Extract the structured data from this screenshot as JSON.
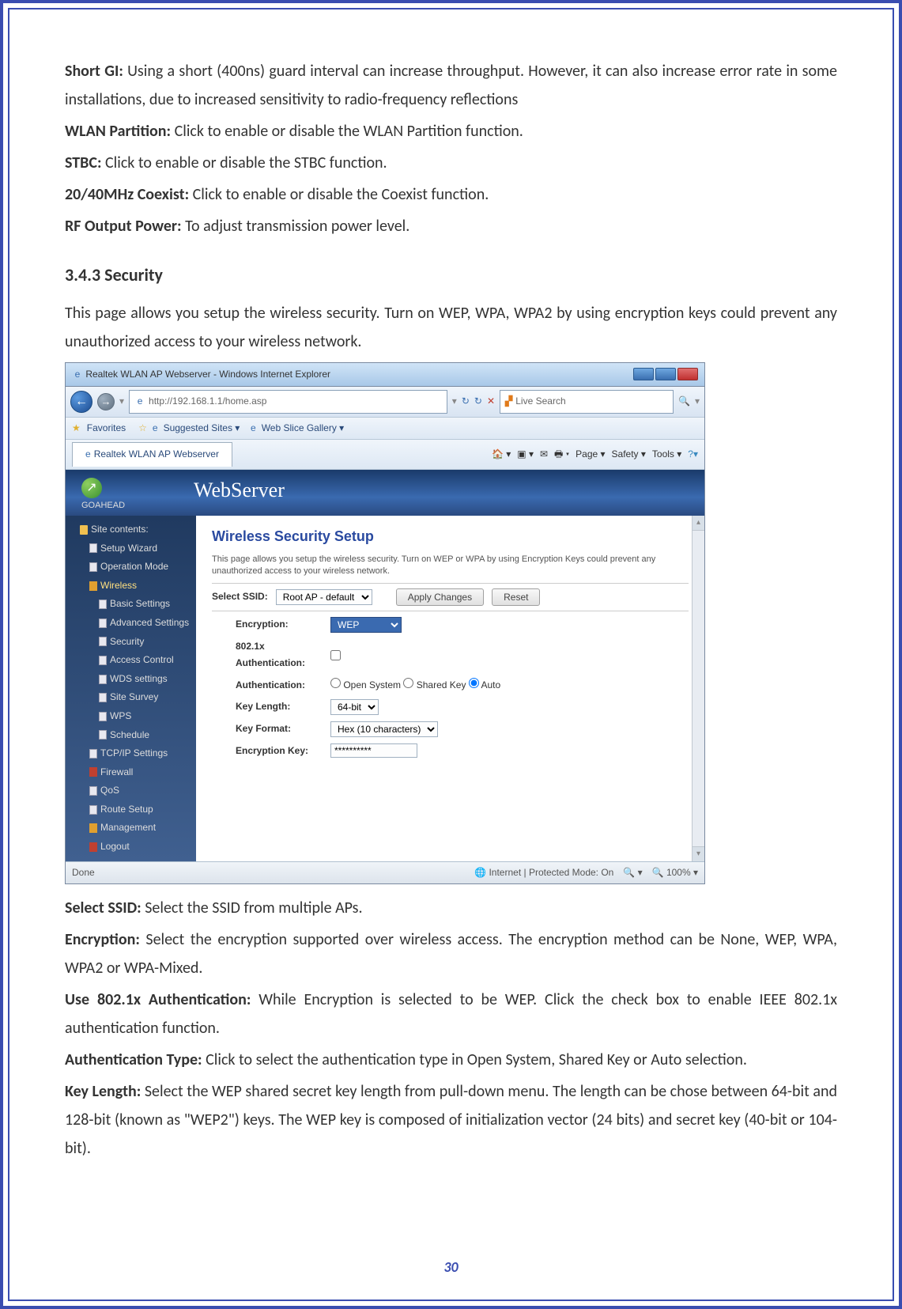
{
  "doc": {
    "para_short_gi_label": "Short GI:",
    "para_short_gi": " Using a short (400ns) guard interval can increase throughput. However, it can also increase error rate in some installations, due to increased sensitivity to radio-frequency reflections",
    "para_wlan_label": "WLAN Partition:",
    "para_wlan": " Click to enable or disable the WLAN Partition function.",
    "para_stbc_label": "STBC:",
    "para_stbc": " Click to enable or disable the STBC function.",
    "para_coexist_label": "20/40MHz Coexist:",
    "para_coexist": " Click to enable or disable the Coexist function.",
    "para_rf_label": "RF Output Power:",
    "para_rf": " To adjust transmission power level.",
    "heading_343": "3.4.3    Security",
    "para_343": "This page allows you setup the wireless security. Turn on WEP, WPA, WPA2 by using encryption keys could prevent any unauthorized access to your wireless network.",
    "para_ssid_label": "Select SSID:",
    "para_ssid": " Select the SSID from multiple APs.",
    "para_enc_label": "Encryption:",
    "para_enc": " Select the encryption supported over wireless access. The encryption method can be None, WEP, WPA, WPA2 or WPA-Mixed.",
    "para_8021x_label": "Use 802.1x Authentication:",
    "para_8021x": " While Encryption is selected to be WEP. Click the check box to enable IEEE 802.1x authentication function.",
    "para_auth_label": "Authentication Type:",
    "para_auth": " Click to select the authentication type in Open System, Shared Key or Auto selection.",
    "para_keylen_label": "Key Length:",
    "para_keylen": " Select the WEP shared secret key length from pull-down menu. The length can be chose between 64-bit and 128-bit (known as \"WEP2\") keys.   The WEP key is composed of initialization vector (24 bits) and secret key (40-bit or 104-bit).",
    "page_number": "30"
  },
  "ie": {
    "title": "Realtek WLAN AP Webserver - Windows Internet Explorer",
    "url": "http://192.168.1.1/home.asp",
    "search_placeholder": "Live Search",
    "fav_label": "Favorites",
    "fav_suggested": "Suggested Sites ▾",
    "fav_webslice": "Web Slice Gallery ▾",
    "tab_label": "Realtek WLAN AP Webserver",
    "menu": [
      "Page ▾",
      "Safety ▾",
      "Tools ▾"
    ],
    "status_done": "Done",
    "status_zone": "Internet | Protected Mode: On",
    "status_zoom": "100%"
  },
  "ws": {
    "brand": "GOAHEAD",
    "server_name": "WebServer",
    "sidebar": [
      {
        "label": "Site contents:",
        "lvl": 1,
        "icon": "folder"
      },
      {
        "label": "Setup Wizard",
        "lvl": 2,
        "icon": "page"
      },
      {
        "label": "Operation Mode",
        "lvl": 2,
        "icon": "page"
      },
      {
        "label": "Wireless",
        "lvl": 2,
        "icon": "orange",
        "sel": true
      },
      {
        "label": "Basic Settings",
        "lvl": 3,
        "icon": "page"
      },
      {
        "label": "Advanced Settings",
        "lvl": 3,
        "icon": "page"
      },
      {
        "label": "Security",
        "lvl": 3,
        "icon": "page"
      },
      {
        "label": "Access Control",
        "lvl": 3,
        "icon": "page"
      },
      {
        "label": "WDS settings",
        "lvl": 3,
        "icon": "page"
      },
      {
        "label": "Site Survey",
        "lvl": 3,
        "icon": "page"
      },
      {
        "label": "WPS",
        "lvl": 3,
        "icon": "page"
      },
      {
        "label": "Schedule",
        "lvl": 3,
        "icon": "page"
      },
      {
        "label": "TCP/IP Settings",
        "lvl": 2,
        "icon": "page"
      },
      {
        "label": "Firewall",
        "lvl": 2,
        "icon": "red"
      },
      {
        "label": "QoS",
        "lvl": 2,
        "icon": "page"
      },
      {
        "label": "Route Setup",
        "lvl": 2,
        "icon": "page"
      },
      {
        "label": "Management",
        "lvl": 2,
        "icon": "orange"
      },
      {
        "label": "Logout",
        "lvl": 2,
        "icon": "red"
      }
    ],
    "page_heading": "Wireless Security Setup",
    "page_desc": "This page allows you setup the wireless security. Turn on WEP or WPA by using Encryption Keys could prevent any unauthorized access to your wireless network.",
    "select_ssid_label": "Select SSID:",
    "select_ssid_value": "Root AP - default",
    "btn_apply": "Apply Changes",
    "btn_reset": "Reset",
    "row_encryption": "Encryption:",
    "encryption_value": "WEP",
    "row_8021x": "802.1x Authentication:",
    "row_auth": "Authentication:",
    "auth_options": [
      "Open System",
      "Shared Key",
      "Auto"
    ],
    "auth_selected": "Auto",
    "row_keylen": "Key Length:",
    "keylen_value": "64-bit",
    "row_keyfmt": "Key Format:",
    "keyfmt_value": "Hex (10 characters)",
    "row_enckey": "Encryption Key:",
    "enckey_value": "**********"
  },
  "colors": {
    "border": "#3a4db0",
    "ie_title_bg": "#a8c8e8",
    "ws_header": "#2a4a80",
    "sidebar_bg": "#305080",
    "heading_blue": "#2a4aa0"
  }
}
